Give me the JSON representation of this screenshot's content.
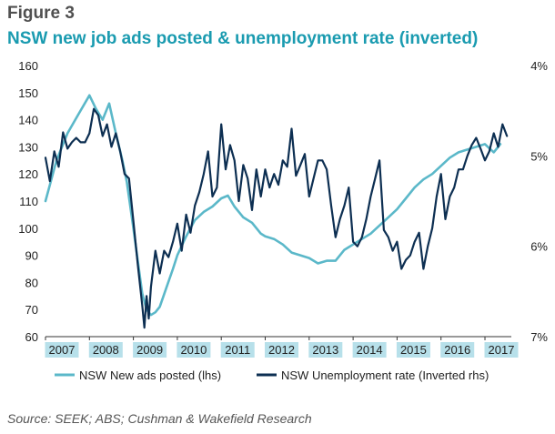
{
  "header": {
    "figure_label": "Figure 3",
    "title": "NSW new job ads posted & unemployment rate (inverted)"
  },
  "source": "Source: SEEK; ABS; Cushman & Wakefield Research",
  "chart_data": {
    "type": "line",
    "grid": false,
    "legend_position": "bottom",
    "x_ticks": [
      "2007",
      "2008",
      "2009",
      "2010",
      "2011",
      "2012",
      "2013",
      "2014",
      "2015",
      "2016",
      "2017"
    ],
    "xlim": [
      2007,
      2017.6
    ],
    "y_left": {
      "ticks": [
        "160",
        "150",
        "140",
        "130",
        "120",
        "110",
        "100",
        "90",
        "80",
        "70",
        "60"
      ],
      "lim": [
        60,
        160
      ]
    },
    "y_right": {
      "ticks": [
        "4%",
        "5%",
        "6%",
        "7%"
      ],
      "lim": [
        4,
        7
      ],
      "inverted": true
    },
    "colors": {
      "job_ads": "#5bb8c9",
      "unemployment": "#0d2f52",
      "highlight": "#b7e0ea"
    },
    "series": [
      {
        "name": "NSW New ads posted (lhs)",
        "axis": "left",
        "x": [
          2007.0,
          2007.25,
          2007.5,
          2007.75,
          2008.0,
          2008.15,
          2008.3,
          2008.45,
          2008.6,
          2008.75,
          2008.85,
          2009.0,
          2009.1,
          2009.2,
          2009.3,
          2009.4,
          2009.5,
          2009.6,
          2009.75,
          2009.9,
          2010.0,
          2010.2,
          2010.4,
          2010.6,
          2010.8,
          2011.0,
          2011.15,
          2011.3,
          2011.5,
          2011.7,
          2011.9,
          2012.0,
          2012.2,
          2012.4,
          2012.6,
          2012.8,
          2013.0,
          2013.2,
          2013.4,
          2013.6,
          2013.8,
          2014.0,
          2014.2,
          2014.4,
          2014.6,
          2014.8,
          2015.0,
          2015.2,
          2015.4,
          2015.6,
          2015.8,
          2016.0,
          2016.2,
          2016.4,
          2016.6,
          2016.8,
          2017.0,
          2017.2,
          2017.35
        ],
        "values": [
          110,
          125,
          135,
          142,
          149,
          144,
          140,
          146,
          135,
          125,
          117,
          100,
          88,
          76,
          70,
          68,
          69,
          71,
          78,
          85,
          90,
          97,
          103,
          106,
          108,
          111,
          112,
          108,
          104,
          102,
          98,
          97,
          96,
          94,
          91,
          90,
          89,
          87,
          88,
          88,
          92,
          94,
          96,
          98,
          101,
          104,
          107,
          111,
          115,
          118,
          120,
          123,
          126,
          128,
          129,
          130,
          131,
          128,
          131
        ]
      },
      {
        "name": "NSW Unemployment rate (Inverted rhs)",
        "axis": "right",
        "x": [
          2007.0,
          2007.1,
          2007.2,
          2007.3,
          2007.4,
          2007.5,
          2007.6,
          2007.7,
          2007.8,
          2007.9,
          2008.0,
          2008.1,
          2008.2,
          2008.3,
          2008.4,
          2008.5,
          2008.6,
          2008.7,
          2008.8,
          2008.9,
          2009.0,
          2009.1,
          2009.2,
          2009.25,
          2009.3,
          2009.35,
          2009.4,
          2009.5,
          2009.6,
          2009.7,
          2009.8,
          2009.9,
          2010.0,
          2010.1,
          2010.2,
          2010.3,
          2010.4,
          2010.5,
          2010.6,
          2010.7,
          2010.8,
          2010.9,
          2011.0,
          2011.1,
          2011.2,
          2011.3,
          2011.4,
          2011.5,
          2011.6,
          2011.7,
          2011.8,
          2011.9,
          2012.0,
          2012.1,
          2012.2,
          2012.3,
          2012.4,
          2012.5,
          2012.6,
          2012.7,
          2012.8,
          2012.9,
          2013.0,
          2013.1,
          2013.2,
          2013.3,
          2013.4,
          2013.5,
          2013.6,
          2013.7,
          2013.8,
          2013.9,
          2014.0,
          2014.1,
          2014.2,
          2014.3,
          2014.4,
          2014.5,
          2014.6,
          2014.7,
          2014.8,
          2014.9,
          2015.0,
          2015.1,
          2015.2,
          2015.3,
          2015.4,
          2015.5,
          2015.6,
          2015.7,
          2015.8,
          2015.9,
          2016.0,
          2016.1,
          2016.2,
          2016.3,
          2016.4,
          2016.5,
          2016.6,
          2016.7,
          2016.8,
          2016.9,
          2017.0,
          2017.1,
          2017.2,
          2017.3,
          2017.4,
          2017.5
        ],
        "values": [
          5.02,
          5.28,
          4.95,
          5.12,
          4.74,
          4.92,
          4.85,
          4.8,
          4.85,
          4.85,
          4.75,
          4.48,
          4.55,
          4.78,
          4.65,
          4.9,
          4.75,
          4.95,
          5.2,
          5.25,
          5.72,
          6.2,
          6.65,
          6.9,
          6.55,
          6.8,
          6.45,
          6.05,
          6.3,
          6.05,
          6.12,
          5.95,
          5.75,
          6.05,
          5.65,
          5.85,
          5.55,
          5.4,
          5.2,
          4.95,
          5.45,
          5.35,
          4.65,
          5.15,
          4.88,
          5.05,
          5.5,
          5.1,
          5.25,
          5.6,
          5.15,
          5.45,
          5.15,
          5.35,
          5.2,
          5.32,
          5.05,
          5.12,
          4.7,
          5.22,
          5.1,
          4.98,
          5.45,
          5.25,
          5.05,
          5.05,
          5.15,
          5.55,
          5.9,
          5.7,
          5.55,
          5.35,
          5.95,
          6.0,
          5.9,
          5.7,
          5.45,
          5.25,
          5.05,
          5.82,
          5.9,
          6.05,
          5.95,
          6.25,
          6.15,
          6.1,
          5.95,
          5.85,
          6.25,
          6.0,
          5.8,
          5.45,
          5.2,
          5.7,
          5.45,
          5.35,
          5.15,
          5.15,
          5.0,
          4.88,
          4.8,
          4.92,
          5.05,
          4.95,
          4.75,
          4.9,
          4.65,
          4.78
        ]
      }
    ]
  }
}
